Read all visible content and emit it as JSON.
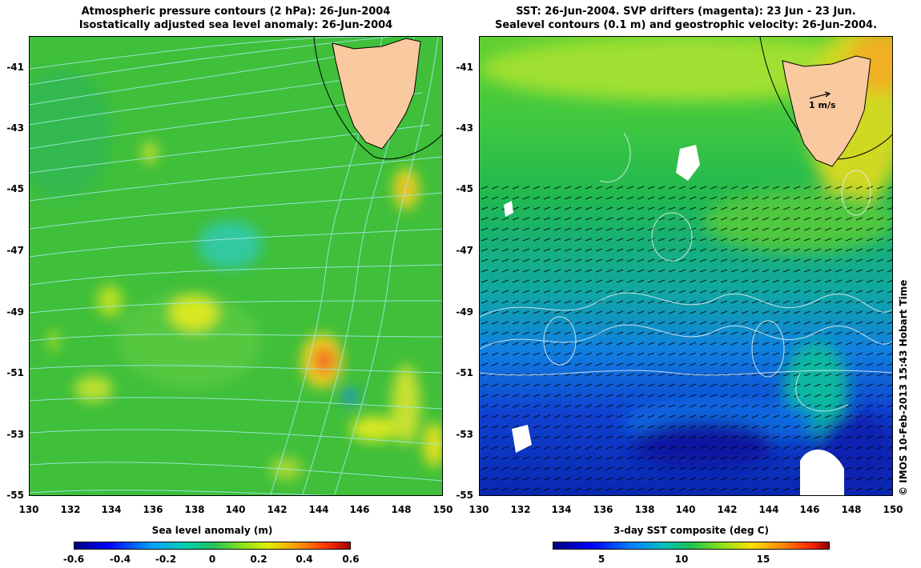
{
  "left_panel": {
    "title_line1": "Atmospheric pressure contours (2 hPa): 26-Jun-2004",
    "title_line2": "Isostatically adjusted sea level anomaly: 26-Jun-2004",
    "colorbar_label": "Sea level anomaly (m)",
    "colorbar_ticks": [
      "-0.6",
      "-0.4",
      "-0.2",
      "0",
      "0.2",
      "0.4",
      "0.6"
    ],
    "colorbar_range": [
      -0.6,
      0.6
    ]
  },
  "right_panel": {
    "title_line1": "SST: 26-Jun-2004. SVP drifters (magenta): 23 Jun - 23 Jun.",
    "title_line2": "Sealevel contours (0.1 m) and geostrophic velocity: 26-Jun-2004.",
    "colorbar_label": "3-day SST composite (deg C)",
    "colorbar_ticks": [
      "5",
      "10",
      "15"
    ],
    "colorbar_tick_values": [
      5,
      10,
      15
    ],
    "colorbar_range": [
      2,
      19
    ],
    "velocity_scale_label": "1 m/s"
  },
  "map": {
    "lon_range": [
      130,
      150
    ],
    "lat_range": [
      -55,
      -40
    ],
    "x_ticks": [
      "130",
      "132",
      "134",
      "136",
      "138",
      "140",
      "142",
      "144",
      "146",
      "148",
      "150"
    ],
    "y_ticks": [
      "-41",
      "-43",
      "-45",
      "-47",
      "-49",
      "-51",
      "-53",
      "-55"
    ],
    "land_color": "#f9c9a0",
    "region": "Tasmania"
  },
  "credit": "© IMOS 10-Feb-2013 15:43 Hobart Time"
}
